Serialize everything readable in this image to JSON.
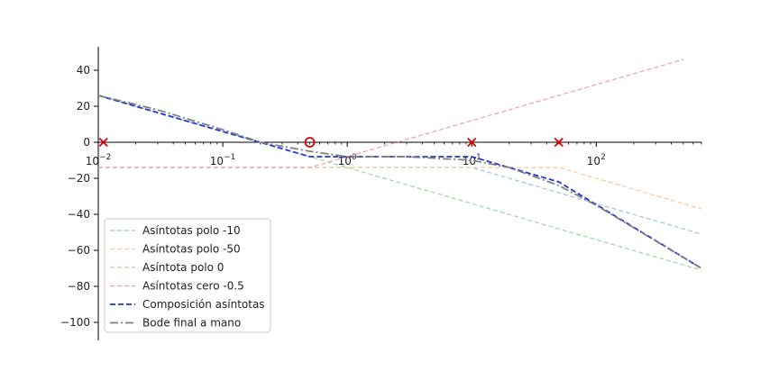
{
  "chart_data": {
    "type": "line",
    "xscale": "log",
    "xlim": [
      0.01,
      700
    ],
    "ylim": [
      -110,
      53
    ],
    "grid": false,
    "legend_position": "lower-left",
    "x_ticks": [
      {
        "value": 0.01,
        "base": "10",
        "exp": "-2"
      },
      {
        "value": 0.1,
        "base": "10",
        "exp": "-1"
      },
      {
        "value": 1,
        "base": "10",
        "exp": "0"
      },
      {
        "value": 10,
        "base": "10",
        "exp": "1"
      },
      {
        "value": 100,
        "base": "10",
        "exp": "2"
      }
    ],
    "y_ticks": [
      40,
      20,
      0,
      -20,
      -40,
      -60,
      -80,
      -100
    ],
    "series": [
      {
        "name": "Asíntotas polo -10",
        "color": "#9ec3e6",
        "style": "dashed",
        "x": [
          0.01,
          10,
          700
        ],
        "y": [
          -14,
          -14,
          -51
        ]
      },
      {
        "name": "Asíntotas polo -50",
        "color": "#ffc89a",
        "style": "dashed",
        "x": [
          0.01,
          50,
          700
        ],
        "y": [
          -14,
          -14,
          -37
        ]
      },
      {
        "name": "Asíntota polo 0",
        "color": "#9fd69f",
        "style": "dashed",
        "x": [
          0.01,
          700
        ],
        "y": [
          26,
          -71
        ]
      },
      {
        "name": "Asíntotas cero  -0.5",
        "color": "#f0a0a0",
        "style": "dashed",
        "x": [
          0.01,
          0.5,
          500
        ],
        "y": [
          -14,
          -14,
          46
        ]
      },
      {
        "name": "Composición asíntotas",
        "color": "#2233dd",
        "style": "dashed-bold",
        "x": [
          0.01,
          0.5,
          10,
          50,
          700
        ],
        "y": [
          26,
          -8,
          -8,
          -22,
          -70
        ]
      },
      {
        "name": "Bode final a mano",
        "color": "#808080",
        "style": "dashdot",
        "x": [
          0.01,
          0.03,
          0.1,
          0.2,
          0.5,
          1,
          3,
          10,
          20,
          50,
          100,
          700
        ],
        "y": [
          26,
          18,
          7,
          0,
          -5,
          -8,
          -8,
          -10,
          -14,
          -24,
          -35,
          -70
        ]
      }
    ],
    "markers": [
      {
        "kind": "pole",
        "x": 0.011,
        "y": 0,
        "color": "#dd0000"
      },
      {
        "kind": "zero",
        "x": 0.5,
        "y": 0,
        "color": "#dd0000"
      },
      {
        "kind": "pole",
        "x": 10,
        "y": 0,
        "color": "#dd0000"
      },
      {
        "kind": "pole",
        "x": 50,
        "y": 0,
        "color": "#dd0000"
      }
    ]
  }
}
